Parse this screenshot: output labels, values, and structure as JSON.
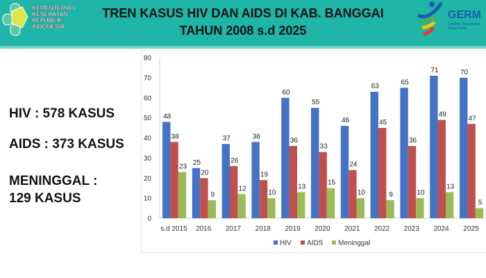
{
  "header": {
    "title_line1": "TREN KASUS HIV DAN AIDS DI KAB. BANGGAI",
    "title_line2": "TAHUN 2008 s.d 2025",
    "left_logo_text": [
      "KEMENTERIAN",
      "KESEHATAN",
      "REPUBLIK",
      "INDONESIA"
    ],
    "right_logo_text": "GERM",
    "right_logo_sub": [
      "Gerakan Masyarakat",
      "Hidup Sehat"
    ],
    "background_color": "#1fb5a9"
  },
  "summary": {
    "hiv": "HIV : 578 KASUS",
    "aids": "AIDS : 373 KASUS",
    "meninggal_line1": "MENINGGAL :",
    "meninggal_line2": "129 KASUS"
  },
  "chart_data": {
    "type": "bar",
    "title": "",
    "xlabel": "",
    "ylabel": "",
    "ylim": [
      0,
      80
    ],
    "yticks": [
      0,
      10,
      20,
      30,
      40,
      50,
      60,
      70,
      80
    ],
    "grid": false,
    "legend_position": "bottom",
    "categories": [
      "s.d 2015",
      "2016",
      "2017",
      "2018",
      "2019",
      "2020",
      "2021",
      "2022",
      "2023",
      "2024",
      "2025"
    ],
    "series": [
      {
        "name": "HIV",
        "color": "#4472c4",
        "values": [
          48,
          25,
          37,
          38,
          60,
          55,
          46,
          63,
          65,
          71,
          70
        ]
      },
      {
        "name": "AIDS",
        "color": "#c0504d",
        "values": [
          38,
          20,
          26,
          19,
          36,
          33,
          24,
          45,
          36,
          49,
          47
        ]
      },
      {
        "name": "Meninggal",
        "color": "#9bbb59",
        "values": [
          23,
          9,
          12,
          10,
          13,
          15,
          10,
          9,
          10,
          13,
          5
        ]
      }
    ]
  }
}
